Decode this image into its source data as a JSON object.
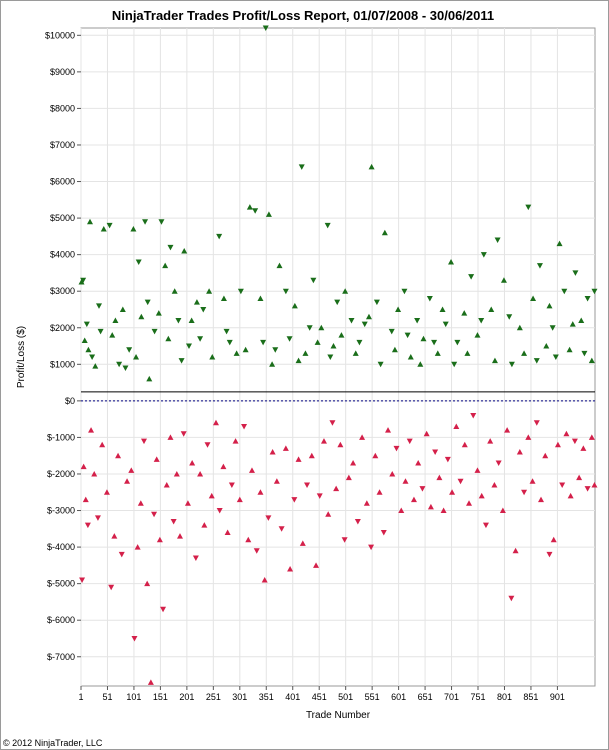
{
  "chart_data": {
    "type": "scatter",
    "title": "NinjaTrader Trades Profit/Loss Report, 01/07/2008 - 30/06/2011",
    "xlabel": "Trade Number",
    "ylabel": "Profit/Loss ($)",
    "copyright": "© 2012 NinjaTrader, LLC",
    "xlim": [
      1,
      972
    ],
    "ylim": [
      -7800,
      10200
    ],
    "x_ticks": [
      "1",
      "51",
      "101",
      "151",
      "201",
      "251",
      "301",
      "351",
      "401",
      "451",
      "501",
      "551",
      "601",
      "651",
      "701",
      "751",
      "801",
      "851",
      "901"
    ],
    "y_ticks": [
      "$10000",
      "$9000",
      "$8000",
      "$7000",
      "$6000",
      "$5000",
      "$4000",
      "$3000",
      "$2000",
      "$1000",
      "$0",
      "$-1000",
      "$-2000",
      "$-3000",
      "$-4000",
      "$-5000",
      "$-6000",
      "$-7000"
    ],
    "grid": true,
    "colors": {
      "profit": "#1a6e1a",
      "loss": "#d4204a",
      "baseline": "#000080"
    },
    "series": [
      {
        "key": "profit",
        "marker": "triangle",
        "points": [
          [
            2,
            3250
          ],
          [
            5,
            3300
          ],
          [
            8,
            1650
          ],
          [
            12,
            2100
          ],
          [
            18,
            4900
          ],
          [
            22,
            1200
          ],
          [
            28,
            950
          ],
          [
            35,
            2600
          ],
          [
            44,
            4700
          ],
          [
            55,
            4800
          ],
          [
            60,
            1800
          ],
          [
            73,
            1000
          ],
          [
            80,
            2500
          ],
          [
            92,
            1400
          ],
          [
            100,
            4700
          ],
          [
            110,
            3800
          ],
          [
            115,
            2300
          ],
          [
            122,
            4900
          ],
          [
            130,
            600
          ],
          [
            140,
            1900
          ],
          [
            148,
            2400
          ],
          [
            153,
            4900
          ],
          [
            160,
            3700
          ],
          [
            170,
            4200
          ],
          [
            178,
            3000
          ],
          [
            185,
            2200
          ],
          [
            196,
            4100
          ],
          [
            205,
            1500
          ],
          [
            220,
            2700
          ],
          [
            232,
            2500
          ],
          [
            243,
            3000
          ],
          [
            262,
            4500
          ],
          [
            271,
            2800
          ],
          [
            282,
            1600
          ],
          [
            295,
            1300
          ],
          [
            303,
            3000
          ],
          [
            320,
            5300
          ],
          [
            330,
            5200
          ],
          [
            340,
            2800
          ],
          [
            350,
            10200
          ],
          [
            356,
            5100
          ],
          [
            368,
            1400
          ],
          [
            376,
            3700
          ],
          [
            388,
            3000
          ],
          [
            405,
            2600
          ],
          [
            418,
            6400
          ],
          [
            425,
            1300
          ],
          [
            440,
            3300
          ],
          [
            455,
            2000
          ],
          [
            467,
            4800
          ],
          [
            478,
            1500
          ],
          [
            485,
            2700
          ],
          [
            500,
            3000
          ],
          [
            512,
            2200
          ],
          [
            520,
            1300
          ],
          [
            537,
            2100
          ],
          [
            550,
            6400
          ],
          [
            560,
            2700
          ],
          [
            575,
            4600
          ],
          [
            588,
            1900
          ],
          [
            600,
            2500
          ],
          [
            612,
            3000
          ],
          [
            624,
            1200
          ],
          [
            636,
            2200
          ],
          [
            648,
            1700
          ],
          [
            660,
            2800
          ],
          [
            675,
            1300
          ],
          [
            690,
            2100
          ],
          [
            700,
            3800
          ],
          [
            712,
            1600
          ],
          [
            725,
            2400
          ],
          [
            738,
            3400
          ],
          [
            750,
            1800
          ],
          [
            762,
            4000
          ],
          [
            776,
            2500
          ],
          [
            788,
            4400
          ],
          [
            800,
            3300
          ],
          [
            815,
            1000
          ],
          [
            830,
            2000
          ],
          [
            846,
            5300
          ],
          [
            855,
            2800
          ],
          [
            868,
            3700
          ],
          [
            880,
            1500
          ],
          [
            892,
            2000
          ],
          [
            905,
            4300
          ],
          [
            914,
            3000
          ],
          [
            924,
            1400
          ],
          [
            935,
            3500
          ],
          [
            946,
            2200
          ],
          [
            958,
            2800
          ],
          [
            966,
            1100
          ],
          [
            971,
            3000
          ],
          [
            15,
            1400
          ],
          [
            38,
            1900
          ],
          [
            66,
            2200
          ],
          [
            85,
            900
          ],
          [
            105,
            1200
          ],
          [
            127,
            2700
          ],
          [
            166,
            1700
          ],
          [
            191,
            1100
          ],
          [
            210,
            2200
          ],
          [
            226,
            1700
          ],
          [
            249,
            1200
          ],
          [
            276,
            1900
          ],
          [
            312,
            1400
          ],
          [
            345,
            1600
          ],
          [
            362,
            1000
          ],
          [
            395,
            1700
          ],
          [
            412,
            1100
          ],
          [
            433,
            2000
          ],
          [
            448,
            1600
          ],
          [
            472,
            1200
          ],
          [
            493,
            1800
          ],
          [
            527,
            1600
          ],
          [
            545,
            2300
          ],
          [
            567,
            1000
          ],
          [
            594,
            1400
          ],
          [
            618,
            1800
          ],
          [
            642,
            1000
          ],
          [
            668,
            1600
          ],
          [
            684,
            2500
          ],
          [
            706,
            1000
          ],
          [
            731,
            1300
          ],
          [
            757,
            2200
          ],
          [
            783,
            1100
          ],
          [
            810,
            2300
          ],
          [
            838,
            1300
          ],
          [
            862,
            1100
          ],
          [
            886,
            2600
          ],
          [
            898,
            1200
          ],
          [
            930,
            2100
          ],
          [
            952,
            1300
          ]
        ]
      },
      {
        "key": "loss",
        "marker": "triangle",
        "points": [
          [
            3,
            -4900
          ],
          [
            6,
            -1800
          ],
          [
            10,
            -2700
          ],
          [
            14,
            -3400
          ],
          [
            20,
            -800
          ],
          [
            26,
            -2000
          ],
          [
            33,
            -3200
          ],
          [
            41,
            -1200
          ],
          [
            50,
            -2500
          ],
          [
            58,
            -5100
          ],
          [
            64,
            -3700
          ],
          [
            71,
            -1500
          ],
          [
            78,
            -4200
          ],
          [
            88,
            -2200
          ],
          [
            96,
            -1900
          ],
          [
            102,
            -6500
          ],
          [
            108,
            -4000
          ],
          [
            114,
            -2800
          ],
          [
            120,
            -1100
          ],
          [
            126,
            -5000
          ],
          [
            133,
            -7700
          ],
          [
            139,
            -3100
          ],
          [
            144,
            -1600
          ],
          [
            150,
            -3800
          ],
          [
            156,
            -5700
          ],
          [
            163,
            -2300
          ],
          [
            170,
            -1000
          ],
          [
            176,
            -3300
          ],
          [
            182,
            -2000
          ],
          [
            188,
            -3700
          ],
          [
            195,
            -900
          ],
          [
            203,
            -2800
          ],
          [
            211,
            -1700
          ],
          [
            218,
            -4300
          ],
          [
            226,
            -2000
          ],
          [
            234,
            -3400
          ],
          [
            240,
            -1200
          ],
          [
            248,
            -2600
          ],
          [
            256,
            -600
          ],
          [
            263,
            -3000
          ],
          [
            270,
            -1800
          ],
          [
            278,
            -3600
          ],
          [
            286,
            -2300
          ],
          [
            293,
            -1100
          ],
          [
            301,
            -2700
          ],
          [
            309,
            -700
          ],
          [
            317,
            -3800
          ],
          [
            324,
            -1900
          ],
          [
            333,
            -4100
          ],
          [
            340,
            -2500
          ],
          [
            348,
            -4900
          ],
          [
            355,
            -3200
          ],
          [
            363,
            -1400
          ],
          [
            371,
            -2200
          ],
          [
            380,
            -3500
          ],
          [
            388,
            -1300
          ],
          [
            396,
            -4600
          ],
          [
            404,
            -2700
          ],
          [
            412,
            -1600
          ],
          [
            420,
            -3900
          ],
          [
            428,
            -2300
          ],
          [
            437,
            -1500
          ],
          [
            445,
            -4500
          ],
          [
            452,
            -2600
          ],
          [
            460,
            -1100
          ],
          [
            468,
            -3100
          ],
          [
            476,
            -600
          ],
          [
            483,
            -2400
          ],
          [
            491,
            -1200
          ],
          [
            499,
            -3800
          ],
          [
            507,
            -2100
          ],
          [
            515,
            -1700
          ],
          [
            524,
            -3300
          ],
          [
            532,
            -1000
          ],
          [
            541,
            -2800
          ],
          [
            549,
            -4000
          ],
          [
            557,
            -1500
          ],
          [
            565,
            -2500
          ],
          [
            573,
            -3600
          ],
          [
            581,
            -800
          ],
          [
            589,
            -2000
          ],
          [
            597,
            -1300
          ],
          [
            606,
            -3000
          ],
          [
            614,
            -2200
          ],
          [
            622,
            -1100
          ],
          [
            630,
            -2700
          ],
          [
            638,
            -1700
          ],
          [
            646,
            -2400
          ],
          [
            654,
            -900
          ],
          [
            662,
            -2900
          ],
          [
            670,
            -1400
          ],
          [
            678,
            -2100
          ],
          [
            686,
            -3000
          ],
          [
            694,
            -1600
          ],
          [
            702,
            -2500
          ],
          [
            710,
            -700
          ],
          [
            718,
            -2200
          ],
          [
            726,
            -1200
          ],
          [
            734,
            -2800
          ],
          [
            742,
            -400
          ],
          [
            750,
            -1900
          ],
          [
            758,
            -2600
          ],
          [
            766,
            -3400
          ],
          [
            774,
            -1100
          ],
          [
            782,
            -2300
          ],
          [
            790,
            -1700
          ],
          [
            798,
            -3000
          ],
          [
            806,
            -800
          ],
          [
            814,
            -5400
          ],
          [
            822,
            -4100
          ],
          [
            830,
            -1400
          ],
          [
            838,
            -2500
          ],
          [
            846,
            -1000
          ],
          [
            854,
            -2200
          ],
          [
            862,
            -600
          ],
          [
            870,
            -2700
          ],
          [
            878,
            -1500
          ],
          [
            886,
            -4200
          ],
          [
            894,
            -3800
          ],
          [
            902,
            -1200
          ],
          [
            910,
            -2300
          ],
          [
            918,
            -900
          ],
          [
            926,
            -2600
          ],
          [
            934,
            -1100
          ],
          [
            942,
            -2100
          ],
          [
            950,
            -1300
          ],
          [
            958,
            -2400
          ],
          [
            966,
            -1000
          ],
          [
            971,
            -2300
          ]
        ]
      }
    ]
  }
}
